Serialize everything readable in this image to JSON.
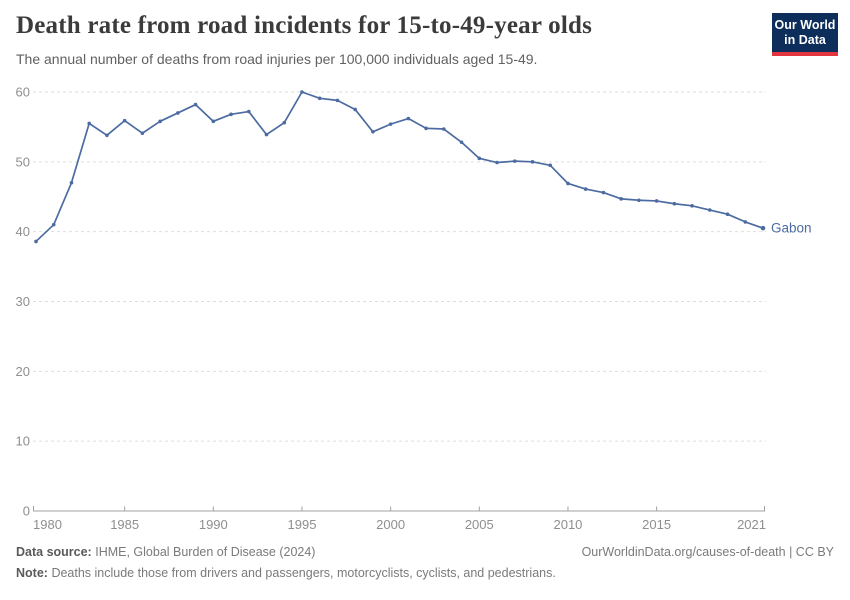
{
  "header": {
    "title": "Death rate from road incidents for 15-to-49-year olds",
    "subtitle": "The annual number of deaths from road injuries per 100,000 individuals aged 15-49."
  },
  "logo": {
    "line1": "Our World",
    "line2": "in Data",
    "bg_color": "#0d2e5b",
    "accent_color": "#e2353f"
  },
  "chart_data": {
    "type": "line",
    "title": "Death rate from road incidents for 15-to-49-year olds",
    "xlabel": "",
    "ylabel": "",
    "x": [
      1980,
      1981,
      1982,
      1983,
      1984,
      1985,
      1986,
      1987,
      1988,
      1989,
      1990,
      1991,
      1992,
      1993,
      1994,
      1995,
      1996,
      1997,
      1998,
      1999,
      2000,
      2001,
      2002,
      2003,
      2004,
      2005,
      2006,
      2007,
      2008,
      2009,
      2010,
      2011,
      2012,
      2013,
      2014,
      2015,
      2016,
      2017,
      2018,
      2019,
      2020,
      2021
    ],
    "series": [
      {
        "name": "Gabon",
        "color": "#4c6ba0",
        "values": [
          38.6,
          41.0,
          47.0,
          55.5,
          53.8,
          55.9,
          54.1,
          55.8,
          57.0,
          58.2,
          55.8,
          56.8,
          57.2,
          53.9,
          55.6,
          60.0,
          59.1,
          58.8,
          57.5,
          54.3,
          55.4,
          56.2,
          54.8,
          54.7,
          52.8,
          50.5,
          49.9,
          50.1,
          50.0,
          49.5,
          46.9,
          46.1,
          45.6,
          44.7,
          44.5,
          44.4,
          44.0,
          43.7,
          43.1,
          42.5,
          41.4,
          40.5
        ]
      }
    ],
    "end_label": "Gabon",
    "xlim": [
      1980,
      2021
    ],
    "ylim": [
      0,
      60
    ],
    "xticks": [
      1980,
      1985,
      1990,
      1995,
      2000,
      2005,
      2010,
      2015,
      2021
    ],
    "yticks": [
      0,
      10,
      20,
      30,
      40,
      50,
      60
    ],
    "grid": "horizontal-dashed",
    "legend_position": "end-of-line",
    "marker": "dot"
  },
  "footer": {
    "datasource_label": "Data source:",
    "datasource_value": "IHME, Global Burden of Disease (2024)",
    "attribution": "OurWorldinData.org/causes-of-death | CC BY",
    "note_label": "Note:",
    "note_value": "Deaths include those from drivers and passengers, motorcyclists, cyclists, and pedestrians."
  },
  "colors": {
    "line": "#4c6ba0",
    "axis": "#a1a1a1",
    "gridline": "#dedede",
    "tick_label": "#8f8f8f"
  }
}
